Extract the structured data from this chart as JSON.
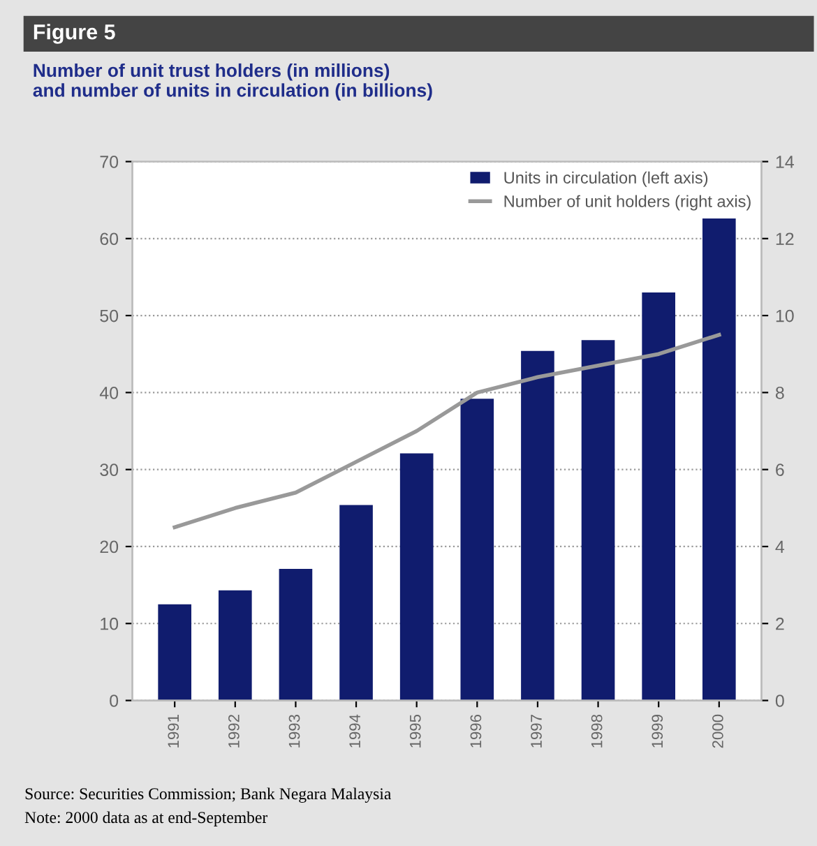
{
  "chart_data": {
    "type": "bar",
    "title": "Figure 5",
    "subtitle": "Number of unit trust holders (in millions)\nand number of units in circulation (in billions)",
    "categories": [
      "1991",
      "1992",
      "1993",
      "1994",
      "1995",
      "1996",
      "1997",
      "1998",
      "1999",
      "2000"
    ],
    "series": [
      {
        "name": "Units in circulation (left axis)",
        "color": "#101c6e",
        "values": [
          12.5,
          14.3,
          17.1,
          25.4,
          32.1,
          39.2,
          45.4,
          46.8,
          53.0,
          62.6
        ]
      },
      {
        "name": "Number of unit holders (right axis)",
        "type": "line",
        "axis": "y2",
        "color": "#999999",
        "values": [
          4.5,
          5.0,
          5.4,
          6.2,
          7.0,
          8.0,
          8.4,
          8.7,
          9.0,
          9.5
        ]
      }
    ],
    "ylim": [
      0,
      70
    ],
    "yticks": [
      0,
      10,
      20,
      30,
      40,
      50,
      60,
      70
    ],
    "y2lim": [
      0,
      14
    ],
    "y2ticks": [
      0,
      2,
      4,
      6,
      8,
      10,
      12,
      14
    ],
    "grid": "y",
    "legend": "top right",
    "marker": "none",
    "line_style": "solid",
    "annotations": [
      "Source: Securities Commission; Bank Negara Malaysia",
      "Note: 2000 data as at end-September"
    ]
  }
}
